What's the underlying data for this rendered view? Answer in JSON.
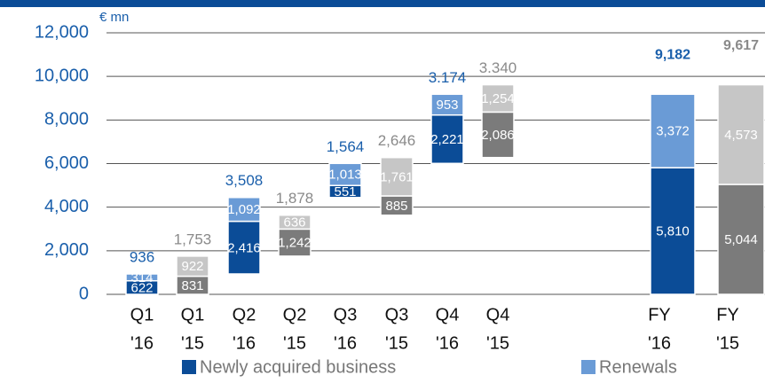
{
  "chart_data": {
    "type": "waterfall",
    "unit_label": "€ mn",
    "categories": [
      [
        "Q1",
        "'16"
      ],
      [
        "Q1",
        "'15"
      ],
      [
        "Q2",
        "'16"
      ],
      [
        "Q2",
        "'15"
      ],
      [
        "Q3",
        "'16"
      ],
      [
        "Q3",
        "'15"
      ],
      [
        "Q4",
        "'16"
      ],
      [
        "Q4",
        "'15"
      ],
      [
        "FY",
        "'16"
      ],
      [
        "FY",
        "'15"
      ]
    ],
    "series": [
      {
        "name": "Newly acquired business",
        "colors": [
          "#0b4c97",
          "#7b7b7b",
          "#0b4c97",
          "#7b7b7b",
          "#0b4c97",
          "#7b7b7b",
          "#0b4c97",
          "#7b7b7b",
          "#0b4c97",
          "#7b7b7b"
        ],
        "values": [
          622,
          831,
          2416,
          1242,
          551,
          885,
          2221,
          2086,
          5810,
          5044
        ],
        "value_labels": [
          "622",
          "831",
          "2,416",
          "1,242",
          "551",
          "885",
          "2,221",
          "2,086",
          "5,810",
          "5,044"
        ]
      },
      {
        "name": "Renewals",
        "colors": [
          "#6a9bd6",
          "#c6c6c6",
          "#6a9bd6",
          "#c6c6c6",
          "#6a9bd6",
          "#c6c6c6",
          "#6a9bd6",
          "#c6c6c6",
          "#6a9bd6",
          "#c6c6c6"
        ],
        "values": [
          314,
          922,
          1092,
          636,
          1013,
          1761,
          953,
          1254,
          3372,
          4573
        ],
        "value_labels": [
          "314",
          "922",
          "1,092",
          "636",
          "1,013",
          "1,761",
          "953",
          "1,254",
          "3,372",
          "4,573"
        ]
      }
    ],
    "totals": [
      936,
      1753,
      3508,
      1878,
      1564,
      2646,
      3174,
      3340,
      9182,
      9617
    ],
    "totals_labels": [
      "936",
      "1,753",
      "3,508",
      "1,878",
      "1,564",
      "2,646",
      "3.174",
      "3.340",
      "9,182",
      "9,617"
    ],
    "totals_colors": [
      "#1a5fab",
      "#8a8a8a",
      "#1a5fab",
      "#8a8a8a",
      "#1a5fab",
      "#8a8a8a",
      "#1a5fab",
      "#8a8a8a",
      "#1a5fab",
      "#8a8a8a"
    ],
    "totals_bold": [
      false,
      false,
      false,
      false,
      false,
      false,
      false,
      false,
      true,
      true
    ],
    "ylim": [
      0,
      12000
    ],
    "yticks": [
      0,
      {
        "value": 2000,
        "label": "2,000"
      },
      {
        "value": 4000,
        "label": "4,000"
      },
      {
        "value": 6000,
        "label": "6,000"
      },
      {
        "value": 8000,
        "label": "8,000"
      },
      {
        "value": 10000,
        "label": "10,000"
      },
      {
        "value": 12000,
        "label": "12,000"
      }
    ],
    "grid": true
  }
}
